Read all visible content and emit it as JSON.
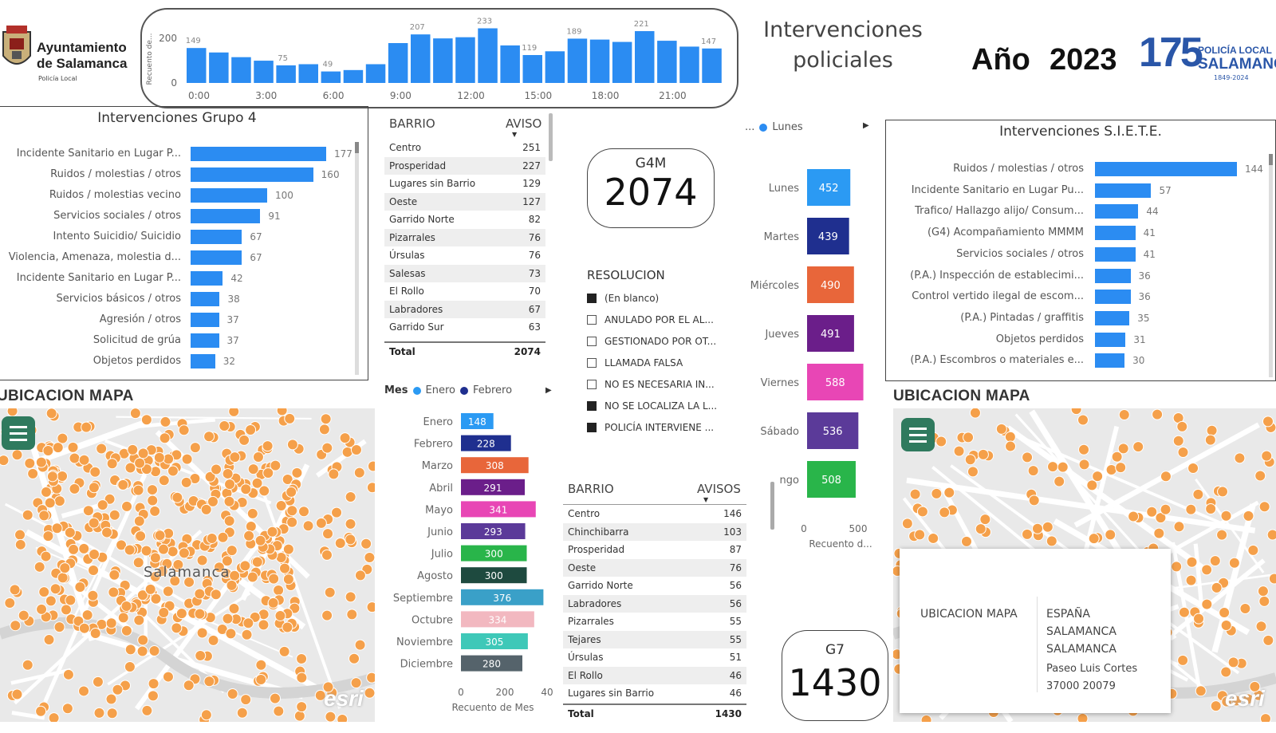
{
  "header": {
    "org_line1": "Ayuntamiento",
    "org_line2": "de Salamanca",
    "org_sub": "Policía Local",
    "title_line1": "Intervenciones",
    "title_line2": "policiales",
    "year_label": "Año",
    "year_value": "2023",
    "badge_number": "175",
    "badge_line1": "POLICÍA LOCAL",
    "badge_line2": "SALAMANCA",
    "badge_years": "1849-2024"
  },
  "hourly": {
    "y_axis_label": "Recuento de...",
    "y_ticks": [
      "200",
      "0"
    ],
    "x_ticks": [
      "0:00",
      "3:00",
      "6:00",
      "9:00",
      "12:00",
      "15:00",
      "18:00",
      "21:00"
    ],
    "values": [
      149,
      130,
      110,
      95,
      75,
      80,
      49,
      55,
      80,
      170,
      207,
      190,
      195,
      233,
      160,
      119,
      135,
      189,
      185,
      175,
      221,
      180,
      155,
      147
    ],
    "labels": {
      "0": "149",
      "4": "75",
      "6": "49",
      "10": "207",
      "13": "233",
      "15": "119",
      "17": "189",
      "20": "221",
      "23": "147"
    },
    "ymax": 250,
    "color": "#2b8cf2"
  },
  "grupo4": {
    "title": "Intervenciones Grupo 4",
    "color": "#2b8cf2",
    "max": 177,
    "items": [
      {
        "label": "Incidente Sanitario en Lugar P...",
        "value": 177
      },
      {
        "label": "Ruidos / molestias / otros",
        "value": 160
      },
      {
        "label": "Ruidos / molestias vecino",
        "value": 100
      },
      {
        "label": "Servicios sociales / otros",
        "value": 91
      },
      {
        "label": "Intento Suicidio/ Suicidio",
        "value": 67
      },
      {
        "label": "Violencia, Amenaza, molestia d...",
        "value": 67
      },
      {
        "label": "Incidente Sanitario en Lugar P...",
        "value": 42
      },
      {
        "label": "Servicios básicos / otros",
        "value": 38
      },
      {
        "label": "Agresión / otros",
        "value": 37
      },
      {
        "label": "Solicitud de grúa",
        "value": 37
      },
      {
        "label": "Objetos perdidos",
        "value": 32
      }
    ]
  },
  "barrio1": {
    "col1": "BARRIO",
    "col2": "AVISO",
    "rows": [
      {
        "name": "Centro",
        "value": "251"
      },
      {
        "name": "Prosperidad",
        "value": "227"
      },
      {
        "name": "Lugares sin Barrio",
        "value": "129"
      },
      {
        "name": "Oeste",
        "value": "127"
      },
      {
        "name": "Garrido Norte",
        "value": "82"
      },
      {
        "name": "Pizarrales",
        "value": "76"
      },
      {
        "name": "Úrsulas",
        "value": "76"
      },
      {
        "name": "Salesas",
        "value": "73"
      },
      {
        "name": "El Rollo",
        "value": "70"
      },
      {
        "name": "Labradores",
        "value": "67"
      },
      {
        "name": "Garrido Sur",
        "value": "63"
      }
    ],
    "total_label": "Total",
    "total_value": "2074"
  },
  "card_g4m": {
    "label": "G4M",
    "value": "2074"
  },
  "card_g7": {
    "label": "G7",
    "value": "1430"
  },
  "resolucion": {
    "title": "RESOLUCION",
    "items": [
      {
        "label": "(En blanco)",
        "checked": true
      },
      {
        "label": "ANULADO POR EL AL...",
        "checked": false
      },
      {
        "label": "GESTIONADO POR OT...",
        "checked": false
      },
      {
        "label": "LLAMADA FALSA",
        "checked": false
      },
      {
        "label": "NO ES NECESARIA IN...",
        "checked": false
      },
      {
        "label": "NO SE LOCALIZA LA L...",
        "checked": true
      },
      {
        "label": "POLICÍA INTERVIENE ...",
        "checked": true
      }
    ]
  },
  "weekday": {
    "legend_more": "...",
    "legend_label": "Lunes",
    "legend_color": "#2b8cf2",
    "x_ticks": [
      "0",
      "500"
    ],
    "x_label": "Recuento d...",
    "max": 600,
    "items": [
      {
        "label": "Lunes",
        "value": 452,
        "color": "#2b9af3"
      },
      {
        "label": "Martes",
        "value": 439,
        "color": "#1f2f8f"
      },
      {
        "label": "Miércoles",
        "value": 490,
        "color": "#e8663a"
      },
      {
        "label": "Jueves",
        "value": 491,
        "color": "#6b1e8a"
      },
      {
        "label": "Viernes",
        "value": 588,
        "color": "#e846b5"
      },
      {
        "label": "Sábado",
        "value": 536,
        "color": "#5b3a99"
      },
      {
        "label": "ngo",
        "value": 508,
        "color": "#29b54a"
      }
    ]
  },
  "siete": {
    "title": "Intervenciones S.I.E.T.E.",
    "color": "#2b8cf2",
    "max": 144,
    "items": [
      {
        "label": "Ruidos / molestias / otros",
        "value": 144
      },
      {
        "label": "Incidente Sanitario en Lugar Pu...",
        "value": 57
      },
      {
        "label": "Trafico/ Hallazgo alijo/ Consum...",
        "value": 44
      },
      {
        "label": "(G4) Acompañamiento MMMM",
        "value": 41
      },
      {
        "label": "Servicios sociales / otros",
        "value": 41
      },
      {
        "label": "(P.A.) Inspección de establecimi...",
        "value": 36
      },
      {
        "label": "Control vertido ilegal de escom...",
        "value": 36
      },
      {
        "label": "(P.A.) Pintadas / graffitis",
        "value": 35
      },
      {
        "label": "Objetos perdidos",
        "value": 31
      },
      {
        "label": "(P.A.) Escombros o materiales e...",
        "value": 30
      }
    ]
  },
  "monthly": {
    "legend_title": "Mes",
    "legend": [
      {
        "label": "Enero",
        "color": "#2b9af3"
      },
      {
        "label": "Febrero",
        "color": "#1f2f8f"
      }
    ],
    "x_ticks": [
      "0",
      "200",
      "40"
    ],
    "x_label": "Recuento de Mes",
    "max": 400,
    "items": [
      {
        "label": "Enero",
        "value": 148,
        "color": "#2b9af3"
      },
      {
        "label": "Febrero",
        "value": 228,
        "color": "#1f2f8f"
      },
      {
        "label": "Marzo",
        "value": 308,
        "color": "#e8663a"
      },
      {
        "label": "Abril",
        "value": 291,
        "color": "#6b1e8a"
      },
      {
        "label": "Mayo",
        "value": 341,
        "color": "#e846b5"
      },
      {
        "label": "Junio",
        "value": 293,
        "color": "#5b3a99"
      },
      {
        "label": "Julio",
        "value": 300,
        "color": "#29b54a"
      },
      {
        "label": "Agosto",
        "value": 300,
        "color": "#1e4a3f"
      },
      {
        "label": "Septiembre",
        "value": 376,
        "color": "#3aa0c8"
      },
      {
        "label": "Octubre",
        "value": 334,
        "color": "#f2b8c0"
      },
      {
        "label": "Noviembre",
        "value": 305,
        "color": "#3ec8b8"
      },
      {
        "label": "Diciembre",
        "value": 280,
        "color": "#55636b"
      }
    ]
  },
  "barrio2": {
    "col1": "BARRIO",
    "col2": "AVISOS",
    "rows": [
      {
        "name": "Centro",
        "value": "146"
      },
      {
        "name": "Chinchibarra",
        "value": "103"
      },
      {
        "name": "Prosperidad",
        "value": "87"
      },
      {
        "name": "Oeste",
        "value": "76"
      },
      {
        "name": "Garrido Norte",
        "value": "56"
      },
      {
        "name": "Labradores",
        "value": "56"
      },
      {
        "name": "Pizarrales",
        "value": "55"
      },
      {
        "name": "Tejares",
        "value": "55"
      },
      {
        "name": "Úrsulas",
        "value": "51"
      },
      {
        "name": "El Rollo",
        "value": "46"
      },
      {
        "name": "Lugares sin Barrio",
        "value": "46"
      }
    ],
    "total_label": "Total",
    "total_value": "1430"
  },
  "map_left": {
    "title": "UBICACION MAPA",
    "city_label": "Salamanca",
    "brand": "esri"
  },
  "map_right": {
    "title": "UBICACION MAPA",
    "brand": "esri",
    "popup": {
      "field": "UBICACION MAPA",
      "line1": "ESPAÑA",
      "line2": "SALAMANCA",
      "line3": "SALAMANCA",
      "line4": "Paseo Luis Cortes",
      "line5": "37000 20079"
    }
  }
}
